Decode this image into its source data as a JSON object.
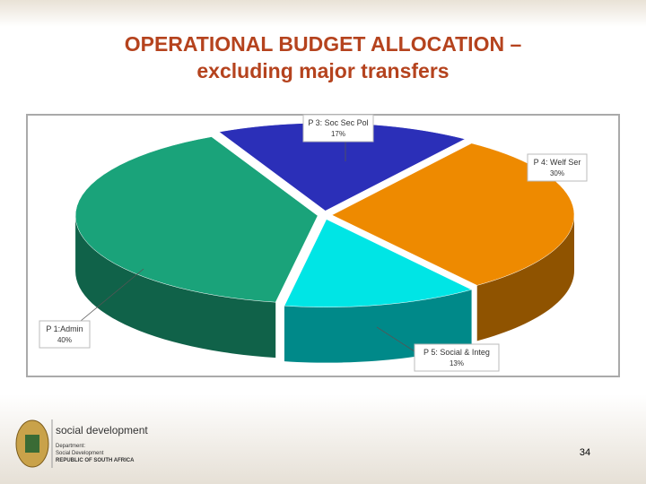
{
  "chart_data": {
    "type": "pie3d",
    "title": "OPERATIONAL BUDGET ALLOCATION – excluding major transfers",
    "categories": [
      "P 1:Admin",
      "P 3: Soc Sec Pol",
      "P 4: Welf Ser",
      "P 5: Social & Integ"
    ],
    "values": [
      40,
      17,
      30,
      13
    ],
    "value_labels": [
      "40%",
      "17%",
      "30%",
      "13%"
    ],
    "colors": [
      "#1aa37a",
      "#2b2fb8",
      "#ee8a00",
      "#00e5e5"
    ]
  },
  "footer": {
    "brand": "social development",
    "dept_label": "Department:",
    "dept_name": "Social Development",
    "country": "REPUBLIC OF SOUTH AFRICA",
    "page_number": "34"
  }
}
